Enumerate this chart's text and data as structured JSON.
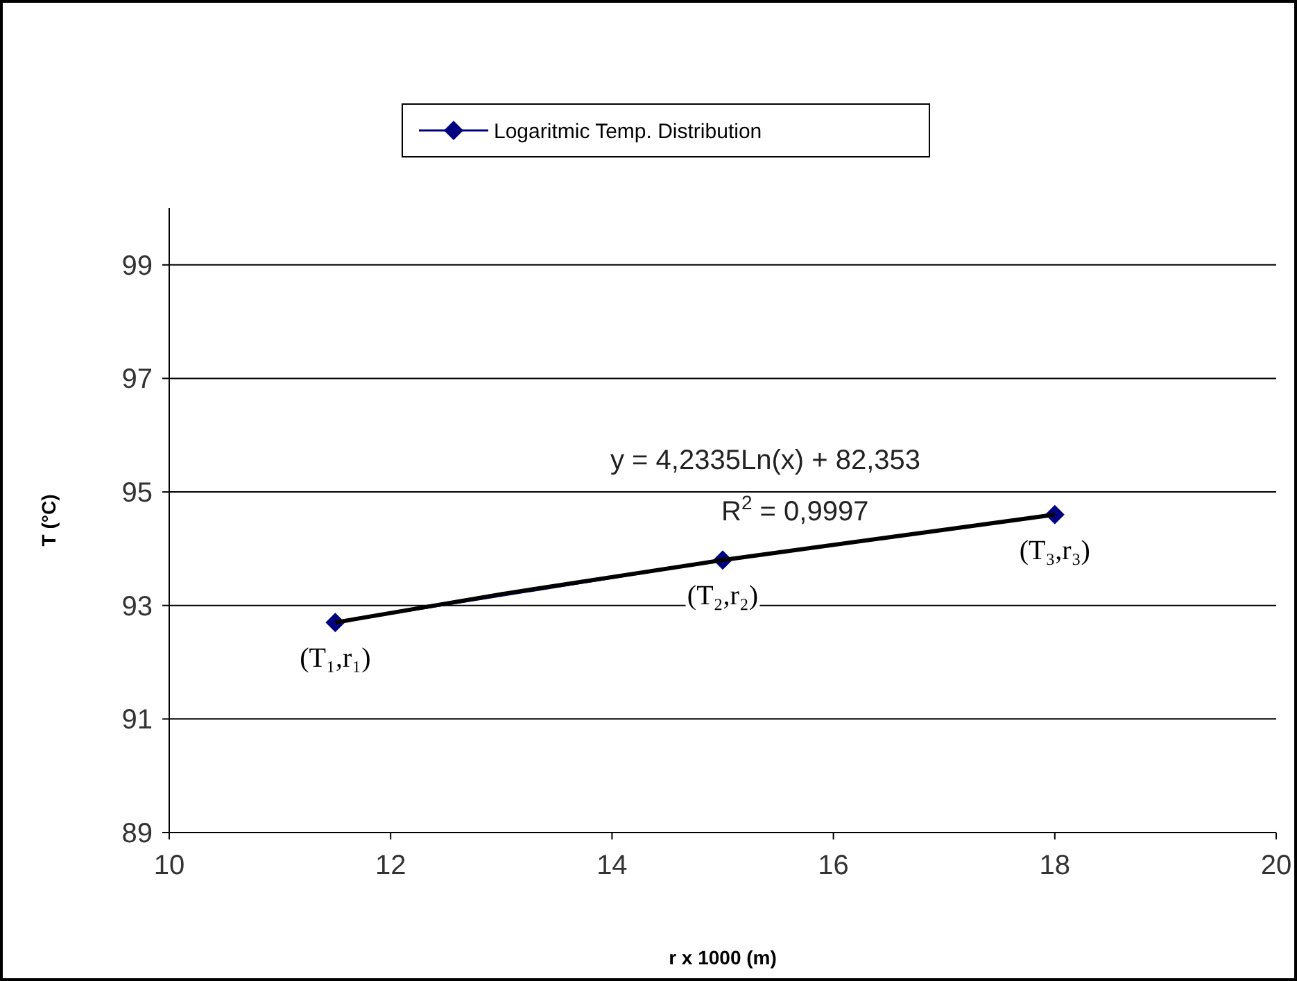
{
  "chart_data": {
    "type": "line",
    "xlabel": "r x 1000 (m)",
    "ylabel": "T (°C)",
    "xlim": [
      10,
      20
    ],
    "xticks": [
      10,
      12,
      14,
      16,
      18,
      20
    ],
    "ylim": [
      89,
      100
    ],
    "yticks": [
      89,
      91,
      93,
      95,
      97,
      99
    ],
    "grid": "y",
    "legend": "top",
    "marker": "diamond",
    "x": [
      11.5,
      15,
      18
    ],
    "series": [
      {
        "name": "Logaritmic Temp. Distribution",
        "color": "#000080",
        "values": [
          92.7,
          93.8,
          94.6
        ]
      },
      {
        "type": "line",
        "color": "#000000",
        "marker": "none",
        "x": [
          11.5,
          13,
          15,
          16.5,
          18
        ],
        "values": [
          92.7,
          93.2,
          93.8,
          94.2,
          94.6
        ]
      }
    ],
    "annotations": [
      "y = 4,2335Ln(x) + 82,353",
      "R$^{2}$ = 0,9997",
      {
        "text": "(T₁,r₁)",
        "x": 11.5,
        "y": 92.7
      },
      {
        "text": "(T₂,r₂)",
        "x": 15,
        "y": 93.8
      },
      {
        "text": "(T₃,r₃)",
        "x": 18,
        "y": 94.6
      }
    ]
  }
}
